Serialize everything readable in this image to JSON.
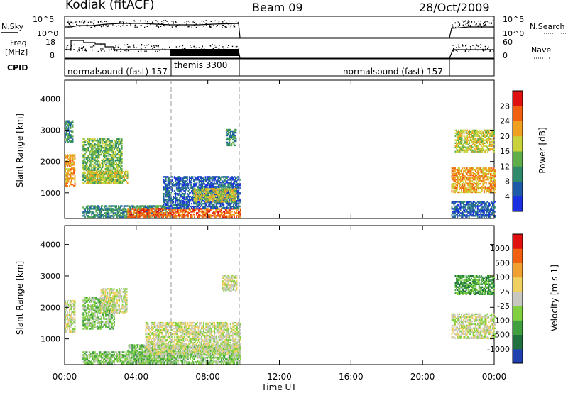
{
  "header": {
    "station": "Kodiak (fitACF)",
    "beam": "Beam 09",
    "date": "28/Oct/2009"
  },
  "summary_panels": {
    "nsky_label": "N.Sky",
    "freq_label_line1": "Freq.",
    "freq_label_line2": "[MHz]",
    "cpid_label": "CPID",
    "nsearch_label": "N.Search",
    "nave_label": "Nave",
    "nsky_ticks": [
      "10^5",
      "10^0"
    ],
    "nsearch_ticks": [
      "10^5",
      "10^0"
    ],
    "freq_ticks": [
      "18",
      "8"
    ],
    "nave_ticks": [
      "60",
      "0"
    ]
  },
  "cpid_segments": [
    {
      "label": "normalsound (fast) 157",
      "start_hour": 0,
      "end_hour": 6
    },
    {
      "label": "themis 3300",
      "start_hour": 6,
      "end_hour": 9.8
    },
    {
      "label": "normalsound (fast) 157",
      "start_hour": 9.8,
      "end_hour": 24
    }
  ],
  "chart_data": [
    {
      "type": "heatmap",
      "name": "power",
      "ylabel": "Slant Range [km]",
      "xlabel": "Time UT",
      "xlim_hours": [
        0,
        24
      ],
      "ylim": [
        180,
        4600
      ],
      "x_tick_labels": [
        "00:00",
        "04:00",
        "08:00",
        "12:00",
        "16:00",
        "20:00",
        "00:00"
      ],
      "y_ticks": [
        1000,
        2000,
        3000,
        4000
      ],
      "colorbar": {
        "label": "Power [dB]",
        "ticks": [
          "4",
          "8",
          "12",
          "16",
          "20",
          "24",
          "28"
        ],
        "colors": [
          "#1a2fe0",
          "#1f5aa8",
          "#2e8a6a",
          "#5fae4a",
          "#c8d23a",
          "#f0a020",
          "#f06010",
          "#e01010"
        ]
      },
      "echo_regions": [
        {
          "t0": 0.0,
          "t1": 0.55,
          "r0": 1200,
          "r1": 2200,
          "level": 5
        },
        {
          "t0": 0.0,
          "t1": 0.45,
          "r0": 2600,
          "r1": 3300,
          "level": 2
        },
        {
          "t0": 1.0,
          "t1": 3.2,
          "r0": 1300,
          "r1": 2700,
          "level": 3
        },
        {
          "t0": 1.2,
          "t1": 3.5,
          "r0": 1300,
          "r1": 1700,
          "level": 4
        },
        {
          "t0": 1.0,
          "t1": 6.0,
          "r0": 200,
          "r1": 600,
          "level": 2
        },
        {
          "t0": 3.5,
          "t1": 9.8,
          "r0": 200,
          "r1": 500,
          "level": 6
        },
        {
          "t0": 5.5,
          "t1": 9.8,
          "r0": 500,
          "r1": 1500,
          "level": 1
        },
        {
          "t0": 7.2,
          "t1": 9.6,
          "r0": 700,
          "r1": 1150,
          "level": 4
        },
        {
          "t0": 9.0,
          "t1": 9.6,
          "r0": 2500,
          "r1": 3000,
          "level": 2
        },
        {
          "t0": 21.6,
          "t1": 24.0,
          "r0": 1000,
          "r1": 1800,
          "level": 5
        },
        {
          "t0": 21.8,
          "t1": 24.0,
          "r0": 2300,
          "r1": 3000,
          "level": 4
        },
        {
          "t0": 21.6,
          "t1": 24.0,
          "r0": 200,
          "r1": 700,
          "level": 1
        }
      ]
    },
    {
      "type": "heatmap",
      "name": "velocity",
      "ylabel": "Slant Range [km]",
      "xlabel": "Time UT",
      "xlim_hours": [
        0,
        24
      ],
      "ylim": [
        180,
        4600
      ],
      "x_tick_labels": [
        "00:00",
        "04:00",
        "08:00",
        "12:00",
        "16:00",
        "20:00",
        "00:00"
      ],
      "y_ticks": [
        1000,
        2000,
        3000,
        4000
      ],
      "colorbar": {
        "label": "Velocity [m s-1]",
        "ticks": [
          "1000",
          "500",
          "100",
          "25",
          "-25",
          "-100",
          "-500",
          "-1000"
        ],
        "colors": [
          "#2040b0",
          "#207040",
          "#40a040",
          "#80d040",
          "#c8c8c0",
          "#f0d060",
          "#f0a030",
          "#f06010",
          "#e01010"
        ]
      },
      "echo_regions": [
        {
          "t0": 0.0,
          "t1": 0.55,
          "r0": 1200,
          "r1": 2200,
          "level": 4
        },
        {
          "t0": 1.0,
          "t1": 2.8,
          "r0": 1300,
          "r1": 2300,
          "level": 3
        },
        {
          "t0": 2.0,
          "t1": 3.5,
          "r0": 1800,
          "r1": 2600,
          "level": 4
        },
        {
          "t0": 1.0,
          "t1": 6.0,
          "r0": 200,
          "r1": 600,
          "level": 3
        },
        {
          "t0": 3.5,
          "t1": 9.8,
          "r0": 200,
          "r1": 800,
          "level": 3
        },
        {
          "t0": 4.5,
          "t1": 9.8,
          "r0": 500,
          "r1": 1500,
          "level": 4
        },
        {
          "t0": 8.8,
          "t1": 9.6,
          "r0": 2500,
          "r1": 3000,
          "level": 4
        },
        {
          "t0": 21.6,
          "t1": 24.0,
          "r0": 1000,
          "r1": 1800,
          "level": 4
        },
        {
          "t0": 21.8,
          "t1": 24.0,
          "r0": 2400,
          "r1": 3000,
          "level": 2
        }
      ]
    }
  ]
}
